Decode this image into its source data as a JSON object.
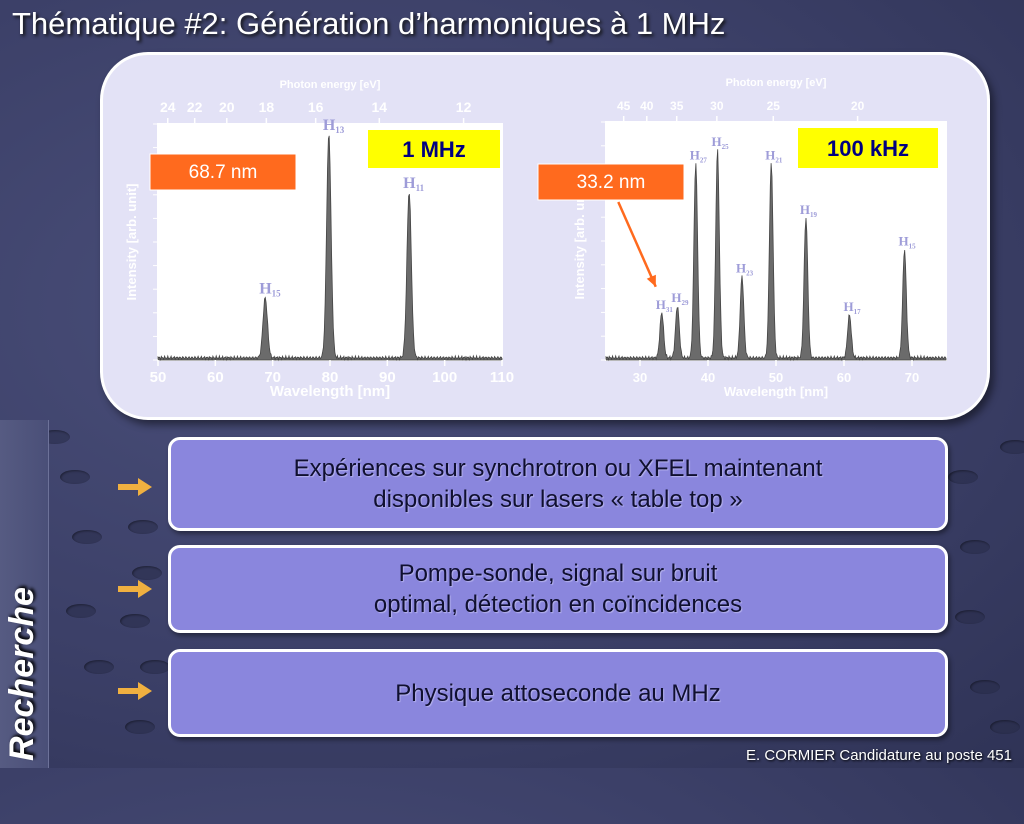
{
  "slide": {
    "title": "Thématique #2: Génération d’harmoniques à 1 MHz",
    "side_label": "Recherche",
    "footer": "E. CORMIER Candidature au poste 451"
  },
  "bullets": [
    {
      "text": "Expériences sur synchrotron ou XFEL maintenant disponibles sur lasers « table top »"
    },
    {
      "text": "Pompe-sonde, signal sur bruit optimal, détection en coïncidences"
    },
    {
      "text": "Physique attoseconde au MHz"
    }
  ],
  "colors": {
    "bullet_box": "#8a86dd",
    "arrow": "#f0b040",
    "callout": "#ff6a1e",
    "rep_rate_label": "#ffff00",
    "trace": "#6b6b6b"
  },
  "chart_data": [
    {
      "type": "line",
      "rep_rate_label": "1 MHz",
      "callout": "68.7 nm",
      "xlabel": "Wavelength [nm]",
      "ylabel": "Intensity [arb. unit]",
      "top_axis_label": "Photon energy [eV]",
      "xlim": [
        50,
        110
      ],
      "x_ticks": [
        "50",
        "60",
        "70",
        "80",
        "90",
        "100",
        "110"
      ],
      "top_ticks": [
        "24",
        "22",
        "20",
        "18",
        "16",
        "14",
        "12"
      ],
      "top_tick_wavelengths": [
        51.7,
        56.4,
        62.0,
        68.9,
        77.5,
        88.6,
        103.3
      ],
      "peaks": [
        {
          "label": "H15",
          "x": 68.7,
          "height": 0.27
        },
        {
          "label": "H13",
          "x": 79.8,
          "height": 1.0
        },
        {
          "label": "H11",
          "x": 93.8,
          "height": 0.74
        }
      ]
    },
    {
      "type": "line",
      "rep_rate_label": "100 kHz",
      "callout": "33.2 nm",
      "xlabel": "Wavelength [nm]",
      "ylabel": "Intensity [arb. unit]",
      "top_axis_label": "Photon energy [eV]",
      "xlim": [
        25,
        75
      ],
      "x_ticks": [
        "30",
        "40",
        "50",
        "60",
        "70"
      ],
      "top_ticks": [
        "45",
        "40",
        "35",
        "30",
        "25",
        "20"
      ],
      "top_tick_wavelengths": [
        27.6,
        31.0,
        35.4,
        41.3,
        49.6,
        62.0
      ],
      "peaks": [
        {
          "label": "H31",
          "x": 33.2,
          "height": 0.2
        },
        {
          "label": "H29",
          "x": 35.5,
          "height": 0.23
        },
        {
          "label": "H27",
          "x": 38.2,
          "height": 0.86
        },
        {
          "label": "H25",
          "x": 41.4,
          "height": 0.92
        },
        {
          "label": "H23",
          "x": 45.0,
          "height": 0.36
        },
        {
          "label": "H21",
          "x": 49.3,
          "height": 0.86
        },
        {
          "label": "H19",
          "x": 54.4,
          "height": 0.62
        },
        {
          "label": "H17",
          "x": 60.8,
          "height": 0.19
        },
        {
          "label": "H15",
          "x": 68.9,
          "height": 0.48
        }
      ]
    }
  ]
}
